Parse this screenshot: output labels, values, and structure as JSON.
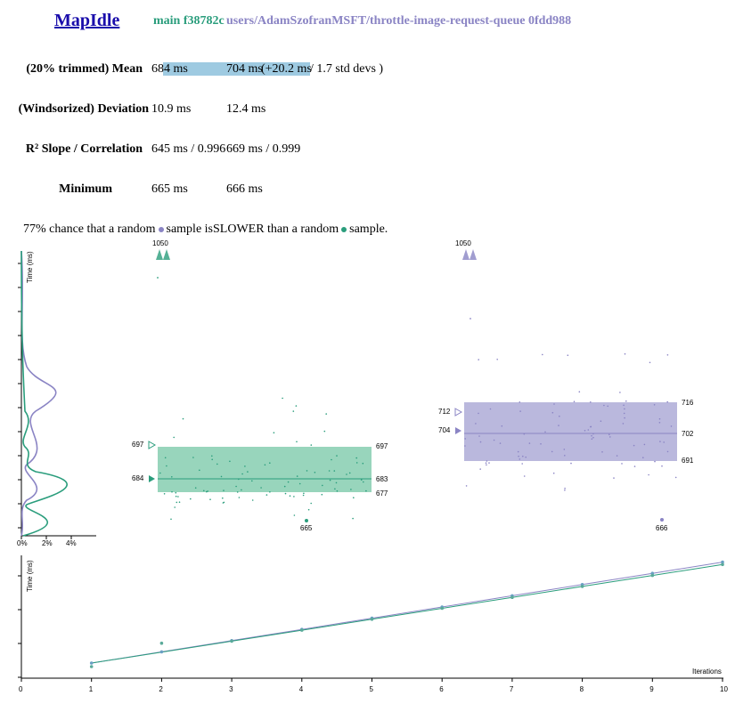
{
  "header": {
    "title": "MapIdle",
    "base_ref": "main f38782c",
    "compare_ref": "users/AdamSzofranMSFT/throttle-image-request-queue 0fdd988"
  },
  "stats": {
    "mean": {
      "label": "(20% trimmed) Mean",
      "base": "684 ms",
      "compare": "704 ms",
      "delta": "(+20.2 ms",
      "delta_tail": " / 1.7 std devs )"
    },
    "deviation": {
      "label": "(Windsorized) Deviation",
      "base": "10.9 ms",
      "compare": "12.4 ms"
    },
    "slope": {
      "label": "R² Slope / Correlation",
      "base": "645 ms / 0.996",
      "compare": "669 ms / 0.999"
    },
    "minimum": {
      "label": "Minimum",
      "base": "665 ms",
      "compare": "666 ms"
    }
  },
  "probability": {
    "prefix": "77% chance that a random",
    "middle": "sample isSLOWER than a random",
    "suffix": "sample."
  },
  "colors": {
    "base": "#2a9d7c",
    "compare": "#8a84c4",
    "base_fill": "#8dd0b5",
    "compare_fill": "#b3b0d9"
  },
  "chart_data": [
    {
      "type": "scatter",
      "name": "base-distribution",
      "ylabel": "Time (ms)",
      "outlier_label": "1050",
      "box": {
        "upper": 697,
        "mean": 684,
        "right_upper": 697,
        "right_mean": 683,
        "right_lower": 677
      },
      "min_label": "665",
      "density_ticks": [
        "0%",
        "2%",
        "4%"
      ]
    },
    {
      "type": "scatter",
      "name": "compare-distribution",
      "outlier_label": "1050",
      "box": {
        "upper": 712,
        "mean": 704,
        "right_upper": 716,
        "right_mean": 702,
        "right_lower": 691
      },
      "min_label": "666"
    },
    {
      "type": "line",
      "name": "iterations",
      "ylabel": "Time (ms)",
      "xlabel": "Iterations",
      "x": [
        0,
        1,
        2,
        3,
        4,
        5,
        6,
        7,
        8,
        9,
        10
      ],
      "x_tick_labels": [
        "0",
        "1",
        "2",
        "3",
        "4",
        "5",
        "6",
        "7",
        "8",
        "9",
        "10"
      ]
    }
  ]
}
